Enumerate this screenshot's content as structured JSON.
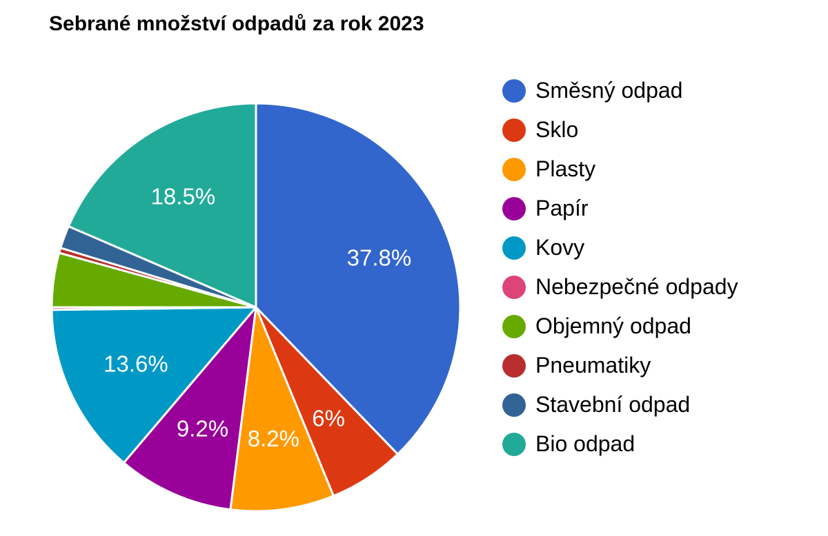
{
  "chart_data": {
    "type": "pie",
    "title": "Sebrané množství odpadů za rok 2023",
    "legend_position": "right",
    "slices": [
      {
        "name": "Směsný odpad",
        "value": 37.8,
        "label": "37.8%",
        "color": "#3366cc"
      },
      {
        "name": "Sklo",
        "value": 6.0,
        "label": "6%",
        "color": "#dc3912"
      },
      {
        "name": "Plasty",
        "value": 8.2,
        "label": "8.2%",
        "color": "#ff9900"
      },
      {
        "name": "Papír",
        "value": 9.2,
        "label": "9.2%",
        "color": "#990099"
      },
      {
        "name": "Kovy",
        "value": 13.6,
        "label": "13.6%",
        "color": "#0099c6"
      },
      {
        "name": "Nebezpečné odpady",
        "value": 0.2,
        "label": "",
        "color": "#dd4477"
      },
      {
        "name": "Objemný odpad",
        "value": 4.3,
        "label": "",
        "color": "#66aa00"
      },
      {
        "name": "Pneumatiky",
        "value": 0.4,
        "label": "",
        "color": "#b82e2e"
      },
      {
        "name": "Stavební odpad",
        "value": 1.8,
        "label": "",
        "color": "#316395"
      },
      {
        "name": "Bio odpad",
        "value": 18.5,
        "label": "18.5%",
        "color": "#22aa99"
      }
    ]
  }
}
